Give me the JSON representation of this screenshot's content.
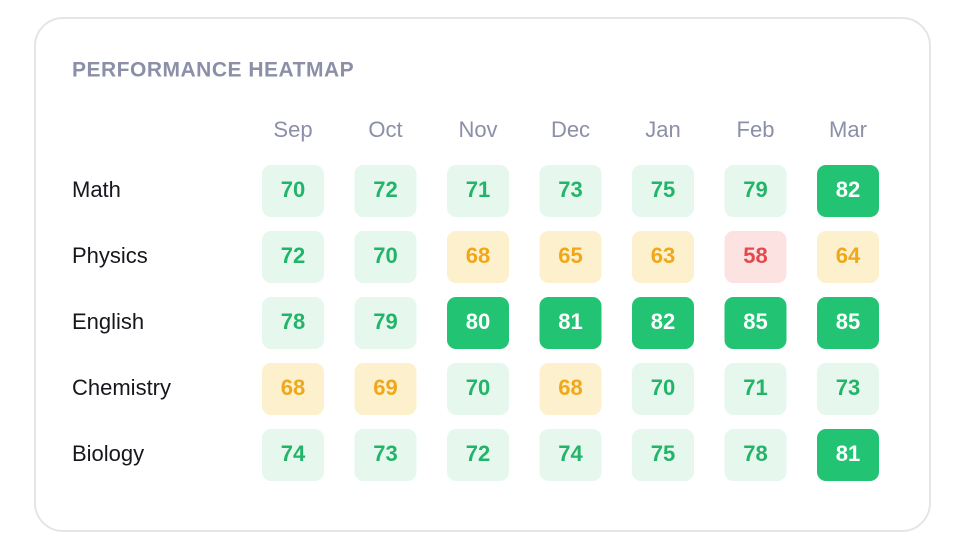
{
  "chart_data": {
    "type": "heatmap",
    "title": "PERFORMANCE HEATMAP",
    "categories": [
      "Sep",
      "Oct",
      "Nov",
      "Dec",
      "Jan",
      "Feb",
      "Mar"
    ],
    "series": [
      {
        "name": "Math",
        "values": [
          70,
          72,
          71,
          73,
          75,
          79,
          82
        ]
      },
      {
        "name": "Physics",
        "values": [
          72,
          70,
          68,
          65,
          63,
          58,
          64
        ]
      },
      {
        "name": "English",
        "values": [
          78,
          79,
          80,
          81,
          82,
          85,
          85
        ]
      },
      {
        "name": "Chemistry",
        "values": [
          68,
          69,
          70,
          68,
          70,
          71,
          73
        ]
      },
      {
        "name": "Biology",
        "values": [
          74,
          73,
          72,
          74,
          75,
          78,
          81
        ]
      }
    ],
    "color_scale": [
      {
        "from": 80,
        "fill": "#22c373",
        "text": "#ffffff"
      },
      {
        "from": 70,
        "fill": "#e6f8ee",
        "text": "#22b56a"
      },
      {
        "from": 60,
        "fill": "#fdf0cc",
        "text": "#f0a81a"
      },
      {
        "from": 0,
        "fill": "#fde2e2",
        "text": "#e5484d"
      }
    ]
  }
}
